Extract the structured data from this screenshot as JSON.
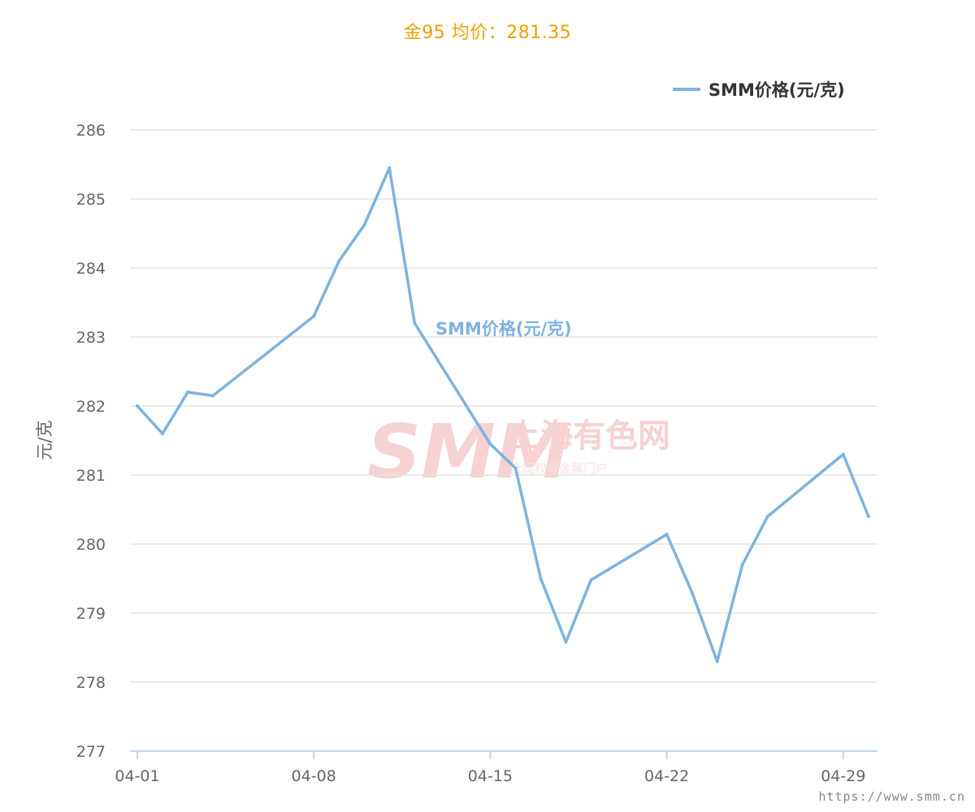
{
  "title": "金95 均价：281.35",
  "watermark": {
    "logo_text": "SMM",
    "cn_text": "上海有色网",
    "sub_text": "全国权威金属门户"
  },
  "site_url": "https://www.smm.cn",
  "colors": {
    "title": "#f0a000",
    "series": "#7eb3e0",
    "watermark": "#f6d2d2"
  },
  "chart_data": {
    "type": "line",
    "ylabel": "元/克",
    "xlabel": "",
    "ylim": [
      277,
      286
    ],
    "yticks": [
      277,
      278,
      279,
      280,
      281,
      282,
      283,
      284,
      285,
      286
    ],
    "xlim": [
      "04-01",
      "04-30"
    ],
    "xticks": [
      "04-01",
      "04-08",
      "04-15",
      "04-22",
      "04-29"
    ],
    "grid": true,
    "legend_position": "top-right",
    "series_label_text": "SMM价格(元/克)",
    "series": [
      {
        "name": "SMM价格(元/克)",
        "points": [
          {
            "x": "04-01",
            "y": 282.0
          },
          {
            "x": "04-02",
            "y": 281.6
          },
          {
            "x": "04-03",
            "y": 282.2
          },
          {
            "x": "04-04",
            "y": 282.15
          },
          {
            "x": "04-08",
            "y": 283.3
          },
          {
            "x": "04-09",
            "y": 284.1
          },
          {
            "x": "04-10",
            "y": 284.62
          },
          {
            "x": "04-11",
            "y": 285.45
          },
          {
            "x": "04-12",
            "y": 283.2
          },
          {
            "x": "04-15",
            "y": 281.45
          },
          {
            "x": "04-16",
            "y": 281.1
          },
          {
            "x": "04-17",
            "y": 279.5
          },
          {
            "x": "04-18",
            "y": 278.58
          },
          {
            "x": "04-19",
            "y": 279.48
          },
          {
            "x": "04-22",
            "y": 280.14
          },
          {
            "x": "04-23",
            "y": 279.3
          },
          {
            "x": "04-24",
            "y": 278.3
          },
          {
            "x": "04-25",
            "y": 279.7
          },
          {
            "x": "04-26",
            "y": 280.4
          },
          {
            "x": "04-29",
            "y": 281.3
          },
          {
            "x": "04-30",
            "y": 280.4
          }
        ]
      }
    ]
  }
}
